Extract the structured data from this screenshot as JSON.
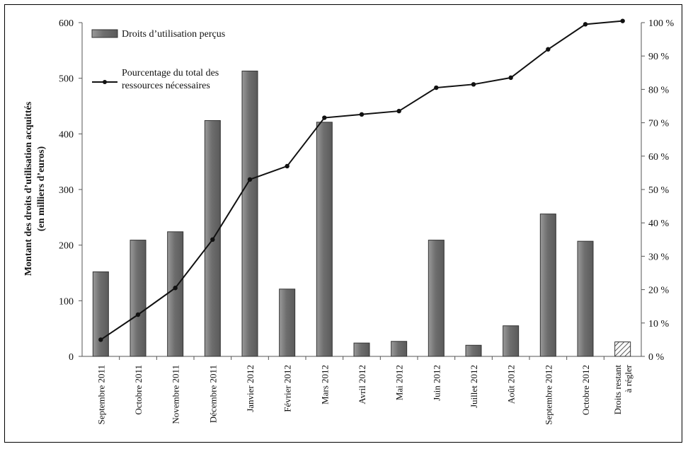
{
  "chart_data": {
    "type": "bar",
    "categories": [
      "Septembre 2011",
      "Octobre 2011",
      "Novembre 2011",
      "Décembre 2011",
      "Janvier 2012",
      "Février 2012",
      "Mars 2012",
      "Avril 2012",
      "Mai 2012",
      "Juin 2012",
      "Juillet 2012",
      "Août 2012",
      "Septembre 2012",
      "Octobre 2012",
      "Droits restant|à régler"
    ],
    "series": [
      {
        "name": "Droits d’utilisation perçus",
        "type": "bar",
        "axis": "left",
        "values": [
          152,
          209,
          224,
          424,
          513,
          121,
          421,
          24,
          27,
          209,
          20,
          55,
          256,
          207,
          26
        ],
        "last_bar_hatched": true
      },
      {
        "name": "Pourcentage du total des ressources nécessaires",
        "type": "line",
        "axis": "right",
        "values": [
          5,
          12.5,
          20.5,
          35,
          53,
          57,
          71.5,
          72.5,
          73.5,
          80.5,
          81.5,
          83.5,
          92,
          99.5,
          100.5
        ]
      }
    ],
    "ylabel_lines": [
      "Montant des droits d’utilisation acquittés",
      "(en milliers d’euros)"
    ],
    "ylim_left": [
      0,
      600
    ],
    "yticks_left": [
      "0",
      "100",
      "200",
      "300",
      "400",
      "500",
      "600"
    ],
    "ylim_right": [
      0,
      100
    ],
    "yticks_right": [
      "0 %",
      "10 %",
      "20 %",
      "30 %",
      "40 %",
      "50 %",
      "60 %",
      "70 %",
      "80 %",
      "90 %",
      "100 %"
    ],
    "legend": {
      "bar_label": "Droits d’utilisation perçus",
      "line_label_lines": [
        "Pourcentage du total des",
        "ressources nécessaires"
      ],
      "placement": "top-left"
    },
    "grid": false,
    "colors": {
      "bar": "#7a7a7a",
      "bar_edge": "#333333",
      "line": "#111111",
      "axis": "#555555"
    }
  }
}
